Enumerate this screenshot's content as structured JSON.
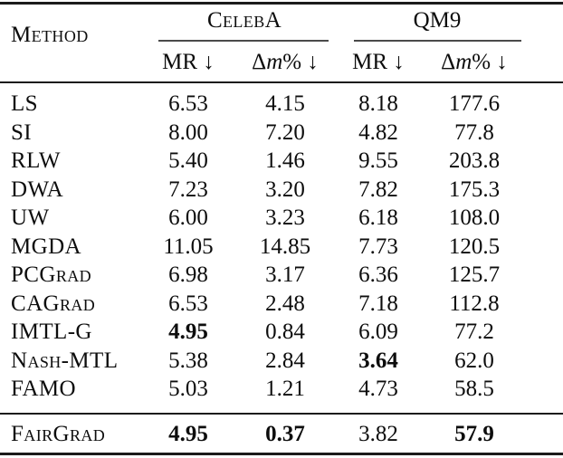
{
  "table": {
    "method_header": "Method",
    "groups": [
      {
        "label": "CelebA"
      },
      {
        "label": "QM9"
      }
    ],
    "subcols": {
      "mr_label": "MR ↓",
      "dm_delta": "Δ",
      "dm_m": "m",
      "dm_rest": "% ↓"
    },
    "rows": [
      {
        "method": "LS",
        "values": [
          "6.53",
          "4.15",
          "8.18",
          "177.6"
        ],
        "bold": [
          false,
          false,
          false,
          false
        ]
      },
      {
        "method": "SI",
        "values": [
          "8.00",
          "7.20",
          "4.82",
          "77.8"
        ],
        "bold": [
          false,
          false,
          false,
          false
        ]
      },
      {
        "method": "RLW",
        "values": [
          "5.40",
          "1.46",
          "9.55",
          "203.8"
        ],
        "bold": [
          false,
          false,
          false,
          false
        ]
      },
      {
        "method": "DWA",
        "values": [
          "7.23",
          "3.20",
          "7.82",
          "175.3"
        ],
        "bold": [
          false,
          false,
          false,
          false
        ]
      },
      {
        "method": "UW",
        "values": [
          "6.00",
          "3.23",
          "6.18",
          "108.0"
        ],
        "bold": [
          false,
          false,
          false,
          false
        ]
      },
      {
        "method": "MGDA",
        "values": [
          "11.05",
          "14.85",
          "7.73",
          "120.5"
        ],
        "bold": [
          false,
          false,
          false,
          false
        ]
      },
      {
        "method": "PCGrad",
        "values": [
          "6.98",
          "3.17",
          "6.36",
          "125.7"
        ],
        "bold": [
          false,
          false,
          false,
          false
        ]
      },
      {
        "method": "CAGrad",
        "values": [
          "6.53",
          "2.48",
          "7.18",
          "112.8"
        ],
        "bold": [
          false,
          false,
          false,
          false
        ]
      },
      {
        "method": "IMTL-G",
        "values": [
          "4.95",
          "0.84",
          "6.09",
          "77.2"
        ],
        "bold": [
          true,
          false,
          false,
          false
        ]
      },
      {
        "method": "Nash-MTL",
        "values": [
          "5.38",
          "2.84",
          "3.64",
          "62.0"
        ],
        "bold": [
          false,
          false,
          true,
          false
        ]
      },
      {
        "method": "FAMO",
        "values": [
          "5.03",
          "1.21",
          "4.73",
          "58.5"
        ],
        "bold": [
          false,
          false,
          false,
          false
        ]
      }
    ],
    "final_row": {
      "method": "FairGrad",
      "values": [
        "4.95",
        "0.37",
        "3.82",
        "57.9"
      ],
      "bold": [
        true,
        true,
        false,
        true
      ]
    }
  }
}
